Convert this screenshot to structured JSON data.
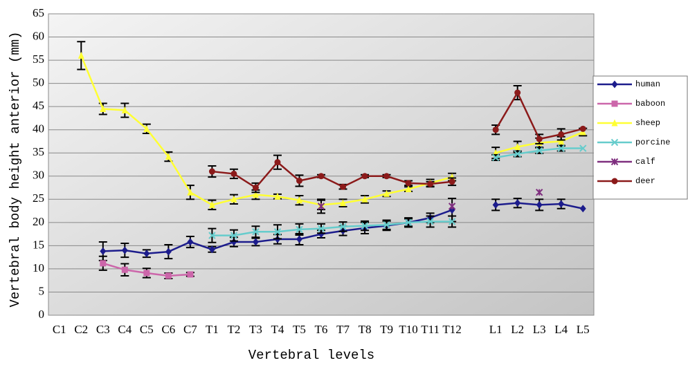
{
  "chart_data": {
    "type": "line",
    "xlabel": "Vertebral levels",
    "ylabel": "Vertebral body height anterior (mm)",
    "categories": [
      "C1",
      "C2",
      "C3",
      "C4",
      "C5",
      "C6",
      "C7",
      "T1",
      "T2",
      "T3",
      "T4",
      "T5",
      "T6",
      "T7",
      "T8",
      "T9",
      "T10",
      "T11",
      "T12",
      null,
      "L1",
      "L2",
      "L3",
      "L4",
      "L5"
    ],
    "ylim": [
      0,
      65
    ],
    "yticks": [
      0,
      5,
      10,
      15,
      20,
      25,
      30,
      35,
      40,
      45,
      50,
      55,
      60,
      65
    ],
    "grid": true,
    "legend": "right",
    "series": [
      {
        "name": "human",
        "color": "#1c1c8c",
        "marker": "diamond",
        "values": [
          null,
          null,
          13.8,
          14,
          13.3,
          13.7,
          15.8,
          14.2,
          15.8,
          15.8,
          16.4,
          16.4,
          17.5,
          18.2,
          18.8,
          19.3,
          20,
          21,
          22.7,
          null,
          23.8,
          24.2,
          23.8,
          24,
          23
        ],
        "errors": [
          null,
          null,
          2,
          1.5,
          0.8,
          1.5,
          1.2,
          0.6,
          1,
          0.8,
          1,
          1.2,
          0.8,
          1,
          1.2,
          1,
          1,
          1,
          2.5,
          null,
          1.2,
          1,
          1.2,
          1,
          null
        ]
      },
      {
        "name": "baboon",
        "color": "#cc66aa",
        "marker": "square",
        "values": [
          null,
          null,
          11.2,
          9.8,
          9.1,
          8.5,
          8.8,
          null,
          null,
          null,
          null,
          null,
          null,
          null,
          null,
          null,
          null,
          null,
          null,
          null,
          null,
          null,
          null,
          null,
          null
        ],
        "errors": [
          null,
          null,
          1.5,
          1.3,
          1,
          0.6,
          0.4,
          null,
          null,
          null,
          null,
          null,
          null,
          null,
          null,
          null,
          null,
          null,
          null,
          null,
          null,
          null,
          null,
          null,
          null
        ]
      },
      {
        "name": "sheep",
        "color": "#ffff33",
        "marker": "triangle",
        "values": [
          null,
          56,
          44.5,
          44.2,
          40.2,
          34.2,
          26.5,
          23.8,
          25,
          26,
          25.6,
          24.8,
          23.8,
          24.2,
          25,
          26.2,
          27.2,
          28.5,
          29.8,
          null,
          35,
          36.3,
          37.2,
          37.5,
          39.5
        ],
        "errors": [
          null,
          3,
          1.2,
          1.5,
          1,
          1,
          1.5,
          1,
          1,
          1,
          0.5,
          1,
          1,
          0.8,
          0.8,
          0.6,
          0.5,
          0.8,
          0.8,
          null,
          1.2,
          1.2,
          1,
          1,
          0.8
        ]
      },
      {
        "name": "porcine",
        "color": "#66cccc",
        "marker": "cross",
        "values": [
          null,
          null,
          null,
          null,
          null,
          null,
          null,
          17.2,
          17.2,
          18,
          18,
          18.5,
          18.7,
          19.1,
          19.3,
          19.5,
          20,
          20.2,
          20.2,
          null,
          34,
          34.8,
          35.5,
          36,
          36
        ],
        "errors": [
          null,
          null,
          null,
          null,
          null,
          null,
          null,
          1.5,
          1.2,
          1.2,
          1.5,
          1.2,
          1,
          1,
          1,
          1,
          0.8,
          1.2,
          1.2,
          null,
          0.6,
          0.6,
          0.6,
          0.6,
          null
        ]
      },
      {
        "name": "calf",
        "color": "#7f2f7f",
        "marker": "star",
        "values": [
          null,
          null,
          null,
          null,
          null,
          null,
          null,
          null,
          null,
          null,
          null,
          null,
          23.5,
          null,
          null,
          null,
          null,
          null,
          23.5,
          null,
          null,
          null,
          26.5,
          null,
          null
        ],
        "errors": [
          null,
          null,
          null,
          null,
          null,
          null,
          null,
          null,
          null,
          null,
          null,
          null,
          1.5,
          null,
          null,
          null,
          null,
          null,
          null,
          null,
          null,
          null,
          null,
          null,
          null
        ]
      },
      {
        "name": "deer",
        "color": "#8b1a1a",
        "marker": "circle",
        "values": [
          null,
          null,
          null,
          null,
          null,
          null,
          null,
          31,
          30.5,
          27.5,
          33,
          29,
          30,
          27.7,
          30,
          30,
          28.5,
          28.3,
          28.8,
          null,
          40,
          48,
          38,
          39,
          40.2
        ],
        "errors": [
          null,
          null,
          null,
          null,
          null,
          null,
          null,
          1.2,
          1,
          1,
          1.5,
          1.2,
          0.3,
          0.5,
          0.3,
          0.3,
          0.5,
          0.5,
          0.8,
          null,
          1,
          1.5,
          1,
          1.2,
          null
        ]
      }
    ]
  }
}
